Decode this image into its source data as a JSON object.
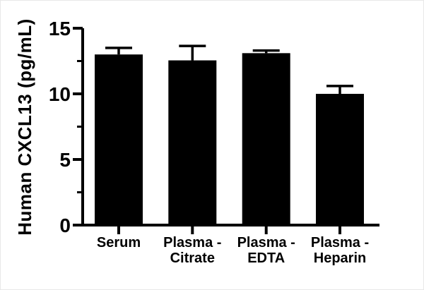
{
  "figure": {
    "background": "#ffffff",
    "border_color": "#e8e8e8"
  },
  "chart_data": {
    "type": "bar",
    "title": "",
    "xlabel": "",
    "ylabel": "Human CXCL13 (pg/mL)",
    "categories": [
      "Serum",
      "Plasma - Citrate",
      "Plasma - EDTA",
      "Plasma - Heparin"
    ],
    "category_label_lines": [
      [
        "Serum"
      ],
      [
        "Plasma -",
        "Citrate"
      ],
      [
        "Plasma -",
        "EDTA"
      ],
      [
        "Plasma -",
        "Heparin"
      ]
    ],
    "values": [
      13.0,
      12.55,
      13.1,
      10.0
    ],
    "errors_upper": [
      0.5,
      1.1,
      0.2,
      0.6
    ],
    "error_bar_style": "upper-only, capped",
    "ylim": [
      0,
      15
    ],
    "yticks": [
      15,
      10,
      5,
      0
    ],
    "minor_yticks": [
      2.5,
      7.5,
      12.5
    ],
    "grid": false,
    "legend": null,
    "bar_color": "#000000",
    "axis_color": "#000000",
    "text_color": "#000000"
  }
}
